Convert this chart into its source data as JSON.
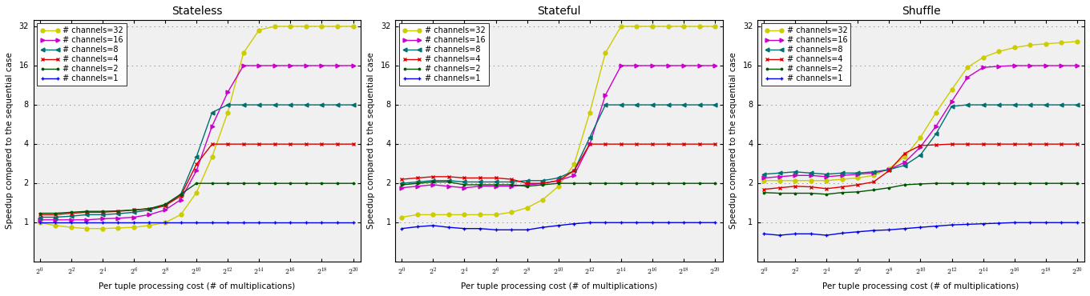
{
  "titles": [
    "Stateless",
    "Stateful",
    "Shuffle"
  ],
  "xlabel": "Per tuple processing cost (# of multiplications)",
  "ylabel": "Speedup compared to the sequential case",
  "x_exponents": [
    0,
    1,
    2,
    3,
    4,
    5,
    6,
    7,
    8,
    9,
    10,
    11,
    12,
    13,
    14,
    15,
    16,
    17,
    18,
    19,
    20
  ],
  "x_tick_exponents": [
    0,
    2,
    4,
    6,
    8,
    10,
    12,
    14,
    16,
    18,
    20
  ],
  "ylim_low": 0.5,
  "ylim_high": 36,
  "yticks": [
    1,
    2,
    4,
    8,
    16,
    32
  ],
  "ytick_labels": [
    "1",
    "2",
    "4",
    "8",
    "16",
    "32"
  ],
  "grid_y": [
    1,
    2,
    4,
    8,
    16,
    32
  ],
  "channels_order": [
    "32",
    "16",
    "8",
    "4",
    "2",
    "1"
  ],
  "colors": {
    "32": "#cccc00",
    "16": "#cc00cc",
    "8": "#007070",
    "4": "#dd0000",
    "2": "#005500",
    "1": "#0000ee"
  },
  "markers": {
    "32": "o",
    "16": ">",
    "8": "<",
    "4": "x",
    "2": ".",
    "1": "+"
  },
  "stateless": {
    "32": [
      1.0,
      0.95,
      0.92,
      0.9,
      0.9,
      0.91,
      0.92,
      0.95,
      1.0,
      1.15,
      1.7,
      3.2,
      7.0,
      20.0,
      30.0,
      32.0,
      32.0,
      32.0,
      32.0,
      32.0,
      32.0
    ],
    "16": [
      1.05,
      1.05,
      1.05,
      1.05,
      1.07,
      1.08,
      1.1,
      1.15,
      1.25,
      1.5,
      2.5,
      5.5,
      10.0,
      16.0,
      16.0,
      16.0,
      16.0,
      16.0,
      16.0,
      16.0,
      16.0
    ],
    "8": [
      1.1,
      1.1,
      1.12,
      1.15,
      1.15,
      1.17,
      1.2,
      1.25,
      1.35,
      1.65,
      3.2,
      7.0,
      8.0,
      8.0,
      8.0,
      8.0,
      8.0,
      8.0,
      8.0,
      8.0,
      8.0
    ],
    "4": [
      1.15,
      1.15,
      1.18,
      1.2,
      1.2,
      1.22,
      1.25,
      1.28,
      1.35,
      1.6,
      2.8,
      4.0,
      4.0,
      4.0,
      4.0,
      4.0,
      4.0,
      4.0,
      4.0,
      4.0,
      4.0
    ],
    "2": [
      1.18,
      1.18,
      1.2,
      1.22,
      1.22,
      1.23,
      1.25,
      1.28,
      1.38,
      1.65,
      2.0,
      2.0,
      2.0,
      2.0,
      2.0,
      2.0,
      2.0,
      2.0,
      2.0,
      2.0,
      2.0
    ],
    "1": [
      1.0,
      1.0,
      1.0,
      1.0,
      1.0,
      1.0,
      1.0,
      1.0,
      1.0,
      1.0,
      1.0,
      1.0,
      1.0,
      1.0,
      1.0,
      1.0,
      1.0,
      1.0,
      1.0,
      1.0,
      1.0
    ]
  },
  "stateful": {
    "32": [
      1.1,
      1.15,
      1.15,
      1.15,
      1.15,
      1.15,
      1.15,
      1.2,
      1.3,
      1.5,
      1.9,
      2.8,
      7.0,
      20.0,
      32.0,
      32.0,
      32.0,
      32.0,
      32.0,
      32.0,
      32.0
    ],
    "16": [
      1.85,
      1.9,
      1.95,
      1.9,
      1.85,
      1.9,
      1.9,
      1.9,
      1.95,
      2.0,
      2.1,
      2.3,
      4.0,
      9.5,
      16.0,
      16.0,
      16.0,
      16.0,
      16.0,
      16.0,
      16.0
    ],
    "8": [
      2.0,
      2.05,
      2.1,
      2.1,
      2.05,
      2.05,
      2.05,
      2.05,
      2.1,
      2.1,
      2.2,
      2.5,
      4.5,
      8.0,
      8.0,
      8.0,
      8.0,
      8.0,
      8.0,
      8.0,
      8.0
    ],
    "4": [
      2.15,
      2.2,
      2.25,
      2.25,
      2.2,
      2.2,
      2.2,
      2.15,
      2.0,
      2.0,
      2.1,
      2.5,
      4.0,
      4.0,
      4.0,
      4.0,
      4.0,
      4.0,
      4.0,
      4.0,
      4.0
    ],
    "2": [
      1.95,
      2.0,
      2.05,
      2.05,
      1.95,
      1.95,
      1.95,
      1.95,
      1.9,
      1.95,
      2.0,
      2.0,
      2.0,
      2.0,
      2.0,
      2.0,
      2.0,
      2.0,
      2.0,
      2.0,
      2.0
    ],
    "1": [
      0.9,
      0.93,
      0.95,
      0.92,
      0.9,
      0.9,
      0.88,
      0.88,
      0.88,
      0.92,
      0.95,
      0.98,
      1.0,
      1.0,
      1.0,
      1.0,
      1.0,
      1.0,
      1.0,
      1.0,
      1.0
    ]
  },
  "shuffle": {
    "32": [
      2.1,
      2.1,
      2.1,
      2.1,
      2.1,
      2.15,
      2.2,
      2.3,
      2.6,
      3.2,
      4.5,
      7.0,
      10.5,
      15.5,
      18.5,
      20.5,
      22.0,
      23.0,
      23.5,
      24.0,
      24.5
    ],
    "16": [
      2.2,
      2.25,
      2.3,
      2.3,
      2.25,
      2.3,
      2.35,
      2.4,
      2.55,
      2.9,
      3.8,
      5.5,
      8.5,
      13.0,
      15.5,
      15.8,
      16.0,
      16.0,
      16.0,
      16.0,
      16.0
    ],
    "8": [
      2.35,
      2.4,
      2.45,
      2.4,
      2.35,
      2.4,
      2.4,
      2.45,
      2.55,
      2.75,
      3.3,
      4.8,
      7.8,
      8.0,
      8.0,
      8.0,
      8.0,
      8.0,
      8.0,
      8.0,
      8.0
    ],
    "4": [
      1.8,
      1.85,
      1.9,
      1.88,
      1.82,
      1.88,
      1.95,
      2.05,
      2.5,
      3.4,
      3.9,
      3.95,
      4.0,
      4.0,
      4.0,
      4.0,
      4.0,
      4.0,
      4.0,
      4.0,
      4.0
    ],
    "2": [
      1.7,
      1.68,
      1.68,
      1.68,
      1.65,
      1.7,
      1.72,
      1.78,
      1.85,
      1.95,
      1.98,
      2.0,
      2.0,
      2.0,
      2.0,
      2.0,
      2.0,
      2.0,
      2.0,
      2.0,
      2.0
    ],
    "1": [
      0.82,
      0.8,
      0.82,
      0.82,
      0.8,
      0.83,
      0.85,
      0.87,
      0.88,
      0.9,
      0.92,
      0.94,
      0.96,
      0.97,
      0.98,
      0.99,
      1.0,
      1.0,
      1.0,
      1.0,
      1.0
    ]
  },
  "legend_labels": {
    "32": "# channels=32",
    "16": "# channels=16",
    "8": "# channels=8",
    "4": "# channels=4",
    "2": "# channels=2",
    "1": "# channels=1"
  },
  "bg_color": "#f0f0f0",
  "title_fontsize": 10,
  "label_fontsize": 7.5,
  "tick_fontsize": 7,
  "legend_fontsize": 7
}
